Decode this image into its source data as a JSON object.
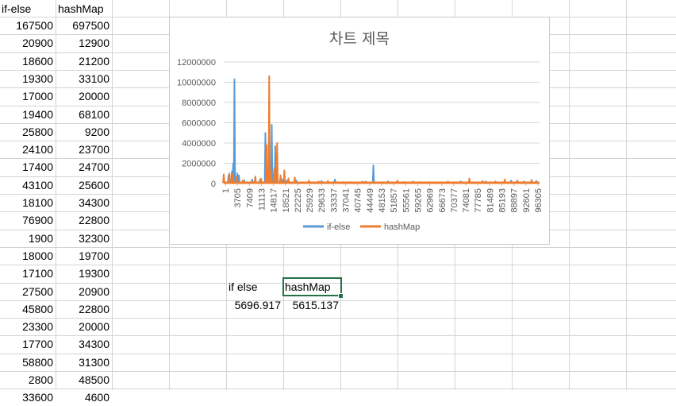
{
  "sheet": {
    "header": {
      "col_a": "if-else",
      "col_b": "hashMap"
    },
    "rows": [
      [
        "167500",
        "697500"
      ],
      [
        "20900",
        "12900"
      ],
      [
        "18600",
        "21200"
      ],
      [
        "19300",
        "33100"
      ],
      [
        "17000",
        "20000"
      ],
      [
        "19400",
        "68100"
      ],
      [
        "25800",
        "9200"
      ],
      [
        "24100",
        "23700"
      ],
      [
        "17400",
        "24700"
      ],
      [
        "43100",
        "25600"
      ],
      [
        "18100",
        "34300"
      ],
      [
        "76900",
        "22800"
      ],
      [
        "1900",
        "32300"
      ],
      [
        "18000",
        "19700"
      ],
      [
        "17100",
        "19300"
      ],
      [
        "27500",
        "20900"
      ],
      [
        "45800",
        "22800"
      ],
      [
        "23300",
        "20000"
      ],
      [
        "17700",
        "34300"
      ],
      [
        "58800",
        "31300"
      ],
      [
        "2800",
        "48500"
      ],
      [
        "33600",
        "4600"
      ]
    ],
    "summary": {
      "label_a": "if else",
      "label_b": "hashMap",
      "value_a": "5696.917",
      "value_b": "5615.137"
    }
  },
  "chart_data": {
    "type": "line",
    "title": "차트 제목",
    "y_ticks": [
      "12000000",
      "10000000",
      "8000000",
      "6000000",
      "4000000",
      "2000000",
      "0"
    ],
    "ylim": [
      0,
      12000000
    ],
    "x_tick_labels": [
      "1",
      "3705",
      "7409",
      "11113",
      "14817",
      "18521",
      "22225",
      "25929",
      "29633",
      "33337",
      "37041",
      "40745",
      "44449",
      "48153",
      "51857",
      "55561",
      "59265",
      "62969",
      "66673",
      "70377",
      "74081",
      "77785",
      "81489",
      "85193",
      "88897",
      "92601",
      "96305"
    ],
    "x_range": [
      1,
      100000
    ],
    "series": [
      {
        "name": "if-else",
        "color": "#5b9bd5",
        "spikes": [
          [
            1,
            300000
          ],
          [
            1500,
            800000
          ],
          [
            2600,
            1200000
          ],
          [
            3000,
            2000000
          ],
          [
            3400,
            10300000
          ],
          [
            4300,
            1000000
          ],
          [
            4800,
            800000
          ],
          [
            6500,
            300000
          ],
          [
            9000,
            400000
          ],
          [
            11500,
            400000
          ],
          [
            13200,
            5000000
          ],
          [
            13800,
            1200000
          ],
          [
            14600,
            2300000
          ],
          [
            15200,
            5800000
          ],
          [
            15800,
            900000
          ],
          [
            16300,
            3700000
          ],
          [
            17000,
            700000
          ],
          [
            18500,
            400000
          ],
          [
            20000,
            300000
          ],
          [
            23000,
            300000
          ],
          [
            31000,
            250000
          ],
          [
            35200,
            400000
          ],
          [
            38000,
            150000
          ],
          [
            44000,
            200000
          ],
          [
            47400,
            1800000
          ],
          [
            52000,
            200000
          ],
          [
            57000,
            150000
          ],
          [
            62000,
            150000
          ],
          [
            75000,
            200000
          ],
          [
            83000,
            200000
          ],
          [
            91000,
            300000
          ],
          [
            95000,
            200000
          ],
          [
            99000,
            250000
          ]
        ]
      },
      {
        "name": "hashMap",
        "color": "#ed7d31",
        "spikes": [
          [
            1,
            900000
          ],
          [
            1800,
            1000000
          ],
          [
            2800,
            900000
          ],
          [
            4000,
            700000
          ],
          [
            6000,
            300000
          ],
          [
            10000,
            700000
          ],
          [
            11800,
            500000
          ],
          [
            13600,
            3800000
          ],
          [
            14400,
            10600000
          ],
          [
            15000,
            1200000
          ],
          [
            16000,
            1500000
          ],
          [
            16900,
            4000000
          ],
          [
            18000,
            800000
          ],
          [
            19200,
            1300000
          ],
          [
            20500,
            500000
          ],
          [
            22500,
            600000
          ],
          [
            27000,
            300000
          ],
          [
            30000,
            200000
          ],
          [
            33000,
            250000
          ],
          [
            40000,
            150000
          ],
          [
            45000,
            200000
          ],
          [
            50000,
            150000
          ],
          [
            55000,
            300000
          ],
          [
            60000,
            200000
          ],
          [
            65000,
            150000
          ],
          [
            71000,
            200000
          ],
          [
            77800,
            500000
          ],
          [
            82000,
            250000
          ],
          [
            86000,
            200000
          ],
          [
            89000,
            400000
          ],
          [
            93000,
            300000
          ],
          [
            97500,
            350000
          ]
        ]
      }
    ],
    "legend_position": "bottom",
    "grid": true
  }
}
